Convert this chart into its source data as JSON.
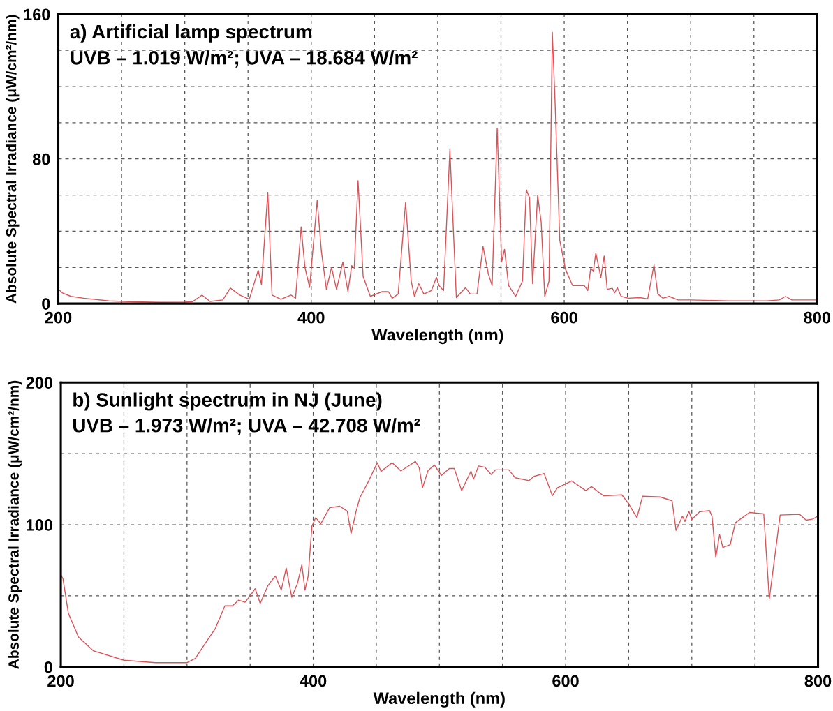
{
  "chart_data": [
    {
      "type": "line",
      "title": "a) Artificial lamp spectrum",
      "subtitle": "UVB – 1.019 W/m²; UVA – 18.684 W/m²",
      "xlabel": "Wavelength (nm)",
      "ylabel": "Absolute Spectral Irradiance (μW/cm²/nm)",
      "xlim": [
        200,
        800
      ],
      "ylim": [
        0,
        160
      ],
      "xticks": [
        200,
        {
          "value": 250,
          "label": null
        },
        {
          "value": 300,
          "label": null
        },
        {
          "value": 350,
          "label": null
        },
        400,
        {
          "value": 450,
          "label": null
        },
        {
          "value": 500,
          "label": null
        },
        {
          "value": 550,
          "label": null
        },
        600,
        {
          "value": 650,
          "label": null
        },
        {
          "value": 700,
          "label": null
        },
        {
          "value": 750,
          "label": null
        },
        800
      ],
      "yticks": [
        0,
        {
          "value": 20,
          "label": null
        },
        {
          "value": 40,
          "label": null
        },
        {
          "value": 60,
          "label": null
        },
        80,
        {
          "value": 100,
          "label": null
        },
        {
          "value": 120,
          "label": null
        },
        {
          "value": 140,
          "label": null
        },
        160
      ],
      "grid": true,
      "legend": false,
      "marker": "none",
      "line_style": "solid",
      "series": [
        {
          "color": "#d9545a",
          "x": [
            200,
            203,
            210,
            220,
            240,
            260,
            280,
            300,
            306,
            313.7,
            320,
            330,
            336,
            343.5,
            351,
            358,
            360.6,
            365.6,
            369,
            376,
            384,
            387.6,
            392,
            395,
            398.7,
            404.7,
            408,
            412,
            416,
            420,
            425,
            429,
            432,
            434,
            437,
            441,
            446.7,
            456,
            461,
            464,
            468.7,
            474.6,
            479,
            481.6,
            485,
            489,
            495,
            499,
            501,
            504.6,
            509.6,
            514.7,
            522,
            525.7,
            531,
            535.8,
            540,
            543,
            547,
            550.5,
            552.8,
            556,
            561.6,
            567,
            570,
            572.6,
            575,
            579,
            581.8,
            584.6,
            588,
            590.6,
            592.8,
            596.5,
            601,
            606.6,
            615.8,
            618.6,
            621,
            623,
            625,
            629,
            631.6,
            634,
            638,
            640,
            642,
            645,
            650.6,
            660,
            666,
            671,
            674,
            678,
            683,
            690,
            700,
            730,
            760,
            770,
            775,
            780,
            800
          ],
          "values": [
            8,
            6,
            4,
            3,
            1.5,
            1,
            0.7,
            0.8,
            1,
            4.7,
            1.2,
            2,
            8.6,
            4.7,
            2.4,
            18.4,
            10.6,
            61.5,
            4.7,
            2.4,
            4.7,
            3,
            42.4,
            20,
            9,
            57,
            29,
            7.8,
            20,
            7.8,
            23,
            6.7,
            21,
            19.6,
            68,
            15,
            4,
            6.6,
            6.6,
            3,
            5.3,
            56,
            12.5,
            4,
            11,
            5.3,
            7.2,
            14.5,
            10,
            7.2,
            85,
            3.3,
            8.8,
            5.3,
            5.3,
            31.5,
            16.4,
            10,
            97,
            23,
            30,
            10,
            4,
            12.5,
            63,
            58.5,
            11,
            60,
            45,
            4,
            12.5,
            150,
            111,
            35,
            19,
            10,
            10,
            7.2,
            19.7,
            17.7,
            28,
            14.5,
            26.3,
            7.9,
            8.5,
            6,
            8.8,
            4,
            3,
            3.3,
            2.6,
            21.4,
            5.3,
            3,
            4,
            2,
            2,
            1.5,
            1.5,
            2,
            4,
            2,
            2
          ]
        }
      ]
    },
    {
      "type": "line",
      "title": "b) Sunlight spectrum in NJ (June)",
      "subtitle": "UVB – 1.973 W/m²; UVA – 42.708 W/m²",
      "xlabel": "Wavelength (nm)",
      "ylabel": "Absolute Spectral Irradiance (μW/cm²/nm)",
      "xlim": [
        200,
        800
      ],
      "ylim": [
        0,
        200
      ],
      "xticks": [
        200,
        {
          "value": 250,
          "label": null
        },
        {
          "value": 300,
          "label": null
        },
        {
          "value": 350,
          "label": null
        },
        400,
        {
          "value": 450,
          "label": null
        },
        {
          "value": 500,
          "label": null
        },
        {
          "value": 550,
          "label": null
        },
        600,
        {
          "value": 650,
          "label": null
        },
        {
          "value": 700,
          "label": null
        },
        {
          "value": 750,
          "label": null
        },
        800
      ],
      "yticks": [
        0,
        {
          "value": 50,
          "label": null
        },
        100,
        {
          "value": 150,
          "label": null
        },
        200
      ],
      "grid": true,
      "legend": false,
      "marker": "none",
      "line_style": "solid",
      "series": [
        {
          "color": "#d9545a",
          "x": [
            200,
            201.7,
            206,
            214,
            225.7,
            250,
            275,
            300,
            306.6,
            314.5,
            322.4,
            330,
            336,
            341,
            346,
            350,
            354,
            358,
            364,
            370,
            374.7,
            378.6,
            383,
            387.5,
            391,
            393.5,
            396,
            399,
            402,
            406,
            413,
            421,
            427,
            430,
            434,
            437,
            443.8,
            450.8,
            453.7,
            462.6,
            469.5,
            481,
            484,
            486.6,
            491,
            496,
            501.6,
            507.8,
            511.8,
            517.6,
            525,
            527,
            531,
            536,
            541,
            544.5,
            555,
            560,
            571,
            575,
            583,
            589.5,
            593.5,
            604.8,
            616,
            620.5,
            630,
            644.6,
            649.7,
            656.5,
            661,
            675,
            684.4,
            687.5,
            692.6,
            694.6,
            697.7,
            700,
            706,
            714,
            716,
            719,
            722,
            724.6,
            730.4,
            734.5,
            745.7,
            757,
            761.4,
            770,
            785.5,
            790.6,
            795.8,
            800
          ],
          "values": [
            65,
            62,
            37.7,
            21,
            11.4,
            4.7,
            3,
            3,
            6,
            16.6,
            27,
            43,
            43,
            47,
            45.5,
            50,
            55,
            44.7,
            57,
            64,
            54,
            69.5,
            49,
            58.7,
            71.8,
            54,
            64,
            99,
            105,
            100.7,
            112,
            113,
            109.5,
            93.7,
            109.5,
            119,
            130.5,
            143.6,
            137.5,
            143.6,
            137.8,
            144.5,
            140,
            126,
            138,
            142,
            134.6,
            139.5,
            139.5,
            124,
            137.7,
            132,
            141.3,
            140.4,
            135.3,
            138.6,
            138.6,
            133,
            131,
            134,
            136,
            120.4,
            126,
            130.8,
            124,
            126.8,
            120.4,
            121,
            115,
            105,
            120,
            119.5,
            116.8,
            96,
            106,
            102.3,
            109.5,
            103.7,
            109,
            110,
            106,
            77,
            93,
            84,
            86,
            101.4,
            108.6,
            107.7,
            47.8,
            106.8,
            107.3,
            103.2,
            104,
            106
          ]
        }
      ]
    }
  ]
}
